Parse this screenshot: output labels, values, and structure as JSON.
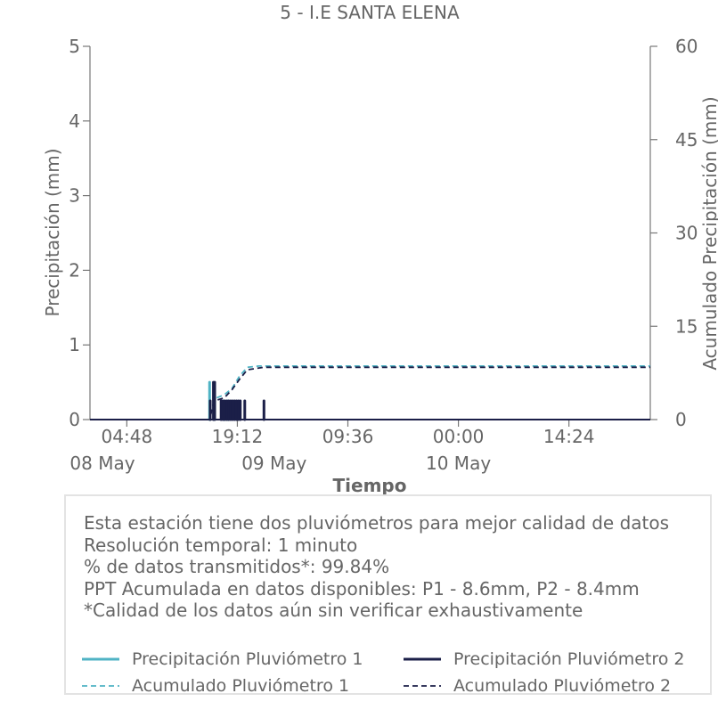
{
  "chart_data": {
    "type": "line",
    "title": "5 - I.E SANTA ELENA",
    "xlabel": "Tiempo",
    "ylabel": "Precipitación (mm)",
    "y2label": "Acumulado Precipitación (mm)",
    "ylim": [
      0,
      5
    ],
    "y2lim": [
      0,
      60
    ],
    "yticks": [
      "0",
      "1",
      "2",
      "3",
      "4",
      "5"
    ],
    "y2ticks": [
      "0",
      "15",
      "30",
      "45",
      "60"
    ],
    "xlim": [
      "2024-05-08T00:00",
      "2024-05-11T01:00"
    ],
    "xticks": [
      {
        "t": "2024-05-08T04:48",
        "label": "04:48"
      },
      {
        "t": "2024-05-08T19:12",
        "label": "19:12"
      },
      {
        "t": "2024-05-09T09:36",
        "label": "09:36"
      },
      {
        "t": "2024-05-10T00:00",
        "label": "00:00"
      },
      {
        "t": "2024-05-10T14:24",
        "label": "14:24"
      }
    ],
    "date_labels": [
      {
        "t": "2024-05-08T00:00",
        "label": "08 May"
      },
      {
        "t": "2024-05-09T00:00",
        "label": "09 May"
      },
      {
        "t": "2024-05-10T00:00",
        "label": "10 May"
      }
    ],
    "grid": false,
    "series": [
      {
        "name": "Precipitación Pluviómetro 1",
        "kind": "bars",
        "color": "#4fb3c4",
        "points": [
          {
            "t": "2024-05-08T15:35",
            "v": 0.5
          },
          {
            "t": "2024-05-08T16:10",
            "v": 0.25
          },
          {
            "t": "2024-05-08T17:30",
            "v": 0.25
          },
          {
            "t": "2024-05-08T18:00",
            "v": 0.25
          }
        ]
      },
      {
        "name": "Precipitación Pluviómetro 2",
        "kind": "bars",
        "color": "#1b1f48",
        "points": [
          {
            "t": "2024-05-08T15:40",
            "v": 0.25
          },
          {
            "t": "2024-05-08T16:05",
            "v": 0.5
          },
          {
            "t": "2024-05-08T16:15",
            "v": 0.5
          },
          {
            "t": "2024-05-08T17:05",
            "v": 0.25
          },
          {
            "t": "2024-05-08T17:20",
            "v": 0.25
          },
          {
            "t": "2024-05-08T17:35",
            "v": 0.25
          },
          {
            "t": "2024-05-08T17:50",
            "v": 0.25
          },
          {
            "t": "2024-05-08T18:05",
            "v": 0.25
          },
          {
            "t": "2024-05-08T18:20",
            "v": 0.25
          },
          {
            "t": "2024-05-08T18:35",
            "v": 0.25
          },
          {
            "t": "2024-05-08T18:50",
            "v": 0.25
          },
          {
            "t": "2024-05-08T19:05",
            "v": 0.25
          },
          {
            "t": "2024-05-08T19:20",
            "v": 0.25
          },
          {
            "t": "2024-05-08T19:35",
            "v": 0.25
          },
          {
            "t": "2024-05-08T20:10",
            "v": 0.25
          },
          {
            "t": "2024-05-08T22:40",
            "v": 0.25
          }
        ]
      },
      {
        "name": "Acumulado Pluviómetro 1",
        "kind": "cumulative",
        "axis": "right",
        "color": "#4fb3c4",
        "points": [
          {
            "t": "2024-05-08T00:00",
            "v": 0
          },
          {
            "t": "2024-05-08T15:30",
            "v": 0
          },
          {
            "t": "2024-05-08T15:40",
            "v": 1.5
          },
          {
            "t": "2024-05-08T16:30",
            "v": 3.5
          },
          {
            "t": "2024-05-08T17:30",
            "v": 4.0
          },
          {
            "t": "2024-05-08T18:30",
            "v": 5.0
          },
          {
            "t": "2024-05-08T19:30",
            "v": 7.0
          },
          {
            "t": "2024-05-08T20:30",
            "v": 8.4
          },
          {
            "t": "2024-05-08T22:00",
            "v": 8.6
          },
          {
            "t": "2024-05-11T01:00",
            "v": 8.6
          }
        ]
      },
      {
        "name": "Acumulado Pluviómetro 2",
        "kind": "cumulative",
        "axis": "right",
        "color": "#1b1f48",
        "points": [
          {
            "t": "2024-05-08T00:00",
            "v": 0
          },
          {
            "t": "2024-05-08T15:35",
            "v": 0
          },
          {
            "t": "2024-05-08T16:10",
            "v": 3.0
          },
          {
            "t": "2024-05-08T17:30",
            "v": 3.5
          },
          {
            "t": "2024-05-08T18:30",
            "v": 4.8
          },
          {
            "t": "2024-05-08T19:30",
            "v": 6.5
          },
          {
            "t": "2024-05-08T20:30",
            "v": 8.0
          },
          {
            "t": "2024-05-08T22:40",
            "v": 8.4
          },
          {
            "t": "2024-05-11T01:00",
            "v": 8.4
          }
        ]
      }
    ]
  },
  "info": {
    "lines": [
      "Esta estación tiene dos pluviómetros para mejor calidad de datos",
      "Resolución temporal: 1 minuto",
      "% de datos transmitidos*: 99.84%",
      "PPT Acumulada en datos disponibles: P1 - 8.6mm, P2 - 8.4mm",
      "*Calidad de los datos aún sin verificar exhaustivamente"
    ]
  },
  "legend": {
    "items": [
      {
        "label": "Precipitación Pluviómetro 1",
        "color": "#4fb3c4",
        "style": "solid"
      },
      {
        "label": "Precipitación Pluviómetro 2",
        "color": "#1b1f48",
        "style": "solid"
      },
      {
        "label": "Acumulado Pluviómetro 1",
        "color": "#4fb3c4",
        "style": "dashed"
      },
      {
        "label": "Acumulado Pluviómetro 2",
        "color": "#1b1f48",
        "style": "dashed"
      }
    ]
  }
}
